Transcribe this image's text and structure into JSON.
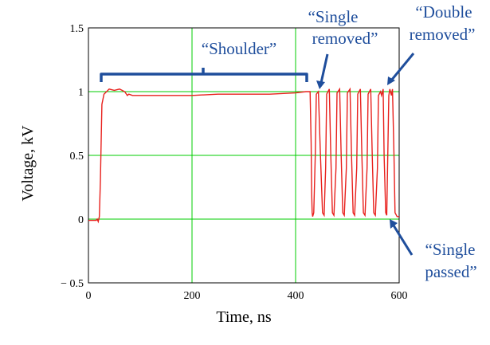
{
  "chart_data": {
    "type": "line",
    "xlabel": "Time, ns",
    "ylabel": "Voltage, kV",
    "xlim": [
      0,
      600
    ],
    "ylim": [
      -0.5,
      1.5
    ],
    "x_ticks": [
      "0",
      "200",
      "400",
      "600"
    ],
    "y_ticks": [
      "1.5",
      "1",
      "0.5",
      "0",
      "− 0.5"
    ],
    "grid": true,
    "grid_color": "#00cc00",
    "series": [
      {
        "color": "#e8201c",
        "description_points": "approximate trace read from the plot",
        "x": [
          0,
          15,
          17,
          19,
          21,
          23,
          26,
          30,
          35,
          40,
          50,
          60,
          70,
          75,
          78,
          85,
          100,
          150,
          200,
          250,
          300,
          350,
          400,
          420,
          428,
          430,
          431,
          432,
          433,
          435,
          438,
          440,
          444,
          448,
          452,
          455,
          458,
          460,
          465,
          468,
          471,
          474,
          478,
          480,
          485,
          488,
          491,
          494,
          498,
          500,
          505,
          508,
          511,
          514,
          518,
          520,
          525,
          528,
          531,
          534,
          538,
          540,
          545,
          548,
          551,
          554,
          558,
          560,
          564,
          566,
          569,
          571,
          574,
          576,
          580,
          582,
          585,
          587,
          590,
          592,
          596,
          600
        ],
        "y": [
          -0.01,
          -0.01,
          0.0,
          -0.02,
          0.02,
          0.3,
          0.9,
          0.98,
          1.0,
          1.02,
          1.01,
          1.02,
          1.0,
          0.97,
          0.98,
          0.97,
          0.97,
          0.97,
          0.97,
          0.98,
          0.98,
          0.98,
          0.99,
          1.0,
          1.0,
          0.6,
          0.2,
          0.05,
          0.02,
          0.05,
          0.5,
          0.98,
          1.0,
          0.5,
          0.05,
          0.03,
          0.4,
          0.98,
          1.02,
          0.5,
          0.05,
          0.03,
          0.4,
          0.99,
          1.02,
          0.5,
          0.05,
          0.03,
          0.4,
          0.99,
          1.02,
          0.5,
          0.05,
          0.03,
          0.4,
          0.98,
          1.02,
          0.5,
          0.05,
          0.03,
          0.4,
          0.98,
          1.02,
          0.5,
          0.05,
          0.03,
          0.4,
          0.97,
          1.0,
          0.97,
          1.02,
          0.5,
          0.05,
          0.03,
          0.97,
          1.02,
          0.97,
          1.02,
          0.5,
          0.05,
          0.02,
          0.02
        ]
      }
    ],
    "annotations": [
      {
        "lines": [
          "“Shoulder”"
        ]
      },
      {
        "lines": [
          "“Single",
          "removed”"
        ]
      },
      {
        "lines": [
          "“Double",
          "removed”"
        ]
      },
      {
        "lines": [
          "“Single",
          "passed”"
        ]
      }
    ],
    "annotation_color": "#1f4e9c"
  }
}
